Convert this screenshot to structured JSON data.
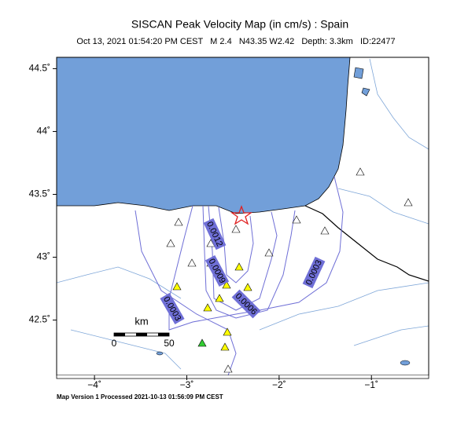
{
  "header": {
    "title": "SISCAN Peak Velocity Map (in cm/s) : Spain",
    "subtitle": "Oct 13, 2021 01:54:20 PM CEST   M 2.4   N43.35 W2.42   Depth: 3.3km   ID:22477"
  },
  "map": {
    "lonlim": [
      -4.41,
      -0.38
    ],
    "latlim": [
      42.06,
      44.59
    ],
    "lon_ticks": [
      {
        "value": -4,
        "label": "−4˚"
      },
      {
        "value": -3,
        "label": "−3˚"
      },
      {
        "value": -2,
        "label": "−2˚"
      },
      {
        "value": -1,
        "label": "−1˚"
      }
    ],
    "lat_ticks": [
      {
        "value": 42.5,
        "label": "42.5˚"
      },
      {
        "value": 43,
        "label": "43˚"
      },
      {
        "value": 43.5,
        "label": "43.5˚"
      },
      {
        "value": 44,
        "label": "44˚"
      },
      {
        "value": 44.5,
        "label": "44.5˚"
      }
    ],
    "contour_labels": [
      "0.0012",
      "0.0009",
      "0.0006",
      "0.0003",
      "0.0003"
    ],
    "scale_bar": {
      "unit": "km",
      "start": "0",
      "end": "50"
    }
  },
  "footer": "Map Version 1 Processed 2021-10-13 01:56:09 PM CEST"
}
